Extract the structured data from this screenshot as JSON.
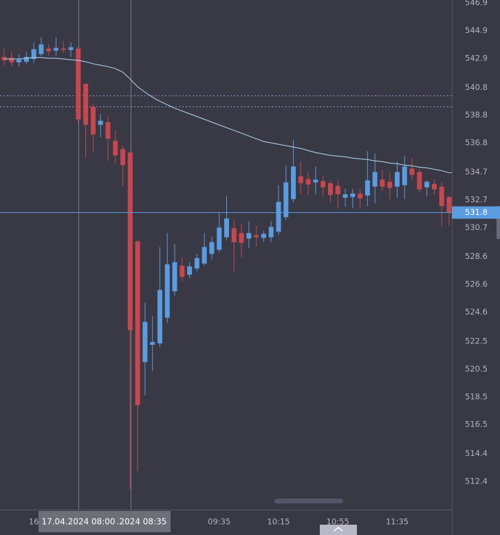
{
  "chart_data": {
    "type": "candlestick",
    "categories": [
      null,
      null,
      null,
      null,
      "16",
      null,
      null,
      null,
      null,
      null,
      null,
      null,
      null,
      null,
      null,
      null,
      null,
      null,
      null,
      null,
      null,
      null,
      null,
      null,
      null,
      null,
      null,
      null,
      null,
      "09:35",
      null,
      null,
      null,
      null,
      null,
      null,
      null,
      "10:15",
      null,
      null,
      null,
      null,
      null,
      null,
      null,
      "10:55",
      null,
      null,
      null,
      null,
      null,
      null,
      null,
      "11:35",
      null,
      null,
      null,
      null,
      null,
      null,
      null
    ],
    "ohlc": {
      "open": [
        543.0,
        542.95,
        542.6,
        542.65,
        542.85,
        543.2,
        543.6,
        543.45,
        543.6,
        543.5,
        543.6,
        541.05,
        539.4,
        538.1,
        538.3,
        536.95,
        536.35,
        536.1,
        529.7,
        521.0,
        522.25,
        522.35,
        524.2,
        526.1,
        527.95,
        527.3,
        527.75,
        528.1,
        528.8,
        529.1,
        530.0,
        530.65,
        530.3,
        529.9,
        530.15,
        529.95,
        530.0,
        530.4,
        531.45,
        532.75,
        534.4,
        534.2,
        533.95,
        534.05,
        533.9,
        533.7,
        532.85,
        532.9,
        533.15,
        533.0,
        533.65,
        534.15,
        534.0,
        533.65,
        533.75,
        534.95,
        534.7,
        533.6,
        533.85,
        533.65,
        532.9
      ],
      "high": [
        543.6,
        543.4,
        543.2,
        543.35,
        544.05,
        544.4,
        543.9,
        544.4,
        544.1,
        544.05,
        543.75,
        541.1,
        539.6,
        538.9,
        538.7,
        537.7,
        536.6,
        536.2,
        529.8,
        525.3,
        524.3,
        529.3,
        530.3,
        529.5,
        528.55,
        528.2,
        528.8,
        530.3,
        530.05,
        531.75,
        533.0,
        531.25,
        531.0,
        531.15,
        530.85,
        530.45,
        531.15,
        533.75,
        535.2,
        537.05,
        535.45,
        534.7,
        535.1,
        534.45,
        534.1,
        534.1,
        533.5,
        533.5,
        533.5,
        536.2,
        536.05,
        534.85,
        534.7,
        535.45,
        535.85,
        535.7,
        534.95,
        534.1,
        534.15,
        534.0,
        533.0
      ],
      "low": [
        542.4,
        542.3,
        542.3,
        542.5,
        542.55,
        543.05,
        543.1,
        543.1,
        543.3,
        543.0,
        538.2,
        535.7,
        536.2,
        537.2,
        535.5,
        535.3,
        533.7,
        511.85,
        513.15,
        518.6,
        520.35,
        522.1,
        523.8,
        525.8,
        526.8,
        527.05,
        527.55,
        527.95,
        528.4,
        528.9,
        529.8,
        527.55,
        528.55,
        529.2,
        529.35,
        529.65,
        529.65,
        530.15,
        531.25,
        532.5,
        533.1,
        533.05,
        533.1,
        532.95,
        532.5,
        532.05,
        532.2,
        532.1,
        532.1,
        532.25,
        532.45,
        533.35,
        532.75,
        532.85,
        532.75,
        534.15,
        533.25,
        532.95,
        533.05,
        530.75,
        530.85
      ],
      "close": [
        542.75,
        542.6,
        542.8,
        543.0,
        543.55,
        543.9,
        543.4,
        543.65,
        543.5,
        543.7,
        538.5,
        538.1,
        537.4,
        538.4,
        537.1,
        535.9,
        535.2,
        523.3,
        517.9,
        523.9,
        522.45,
        526.2,
        528.05,
        528.2,
        527.15,
        527.9,
        528.5,
        529.3,
        529.65,
        530.7,
        531.35,
        529.65,
        529.6,
        530.3,
        530.0,
        530.25,
        530.75,
        532.55,
        533.95,
        535.1,
        533.9,
        533.8,
        534.15,
        533.6,
        533.05,
        533.1,
        533.1,
        533.15,
        532.8,
        534.1,
        534.7,
        533.65,
        533.55,
        534.7,
        535.1,
        534.5,
        533.45,
        534.0,
        533.45,
        532.25,
        531.8
      ]
    },
    "up_color": "#5b9be0",
    "down_color": "#c8474f",
    "moving_average": {
      "color": "#a9cde6",
      "values": [
        542.85,
        542.85,
        542.85,
        542.9,
        542.95,
        542.95,
        542.9,
        542.9,
        542.85,
        542.8,
        542.75,
        542.65,
        542.5,
        542.4,
        542.3,
        542.15,
        541.9,
        541.4,
        540.85,
        540.45,
        540.1,
        539.8,
        539.55,
        539.3,
        539.1,
        538.9,
        538.7,
        538.5,
        538.3,
        538.1,
        537.9,
        537.7,
        537.5,
        537.3,
        537.1,
        536.9,
        536.8,
        536.7,
        536.6,
        536.5,
        536.4,
        536.25,
        536.1,
        536.0,
        535.9,
        535.85,
        535.8,
        535.7,
        535.65,
        535.6,
        535.5,
        535.45,
        535.35,
        535.3,
        535.2,
        535.15,
        535.05,
        535.0,
        534.9,
        534.8,
        534.65
      ]
    },
    "levels": [
      540.2,
      539.45
    ],
    "last_price": 531.8,
    "crosshair_labels": [
      "17.04.2024 08:00",
      ".2024 08:35"
    ],
    "ylim": [
      510.37,
      547.1
    ],
    "yticks": [
      546.9,
      544.9,
      542.9,
      540.8,
      538.8,
      536.8,
      534.7,
      532.7,
      530.7,
      528.6,
      526.6,
      524.6,
      522.5,
      520.5,
      518.5,
      516.5,
      514.4,
      512.4
    ]
  }
}
